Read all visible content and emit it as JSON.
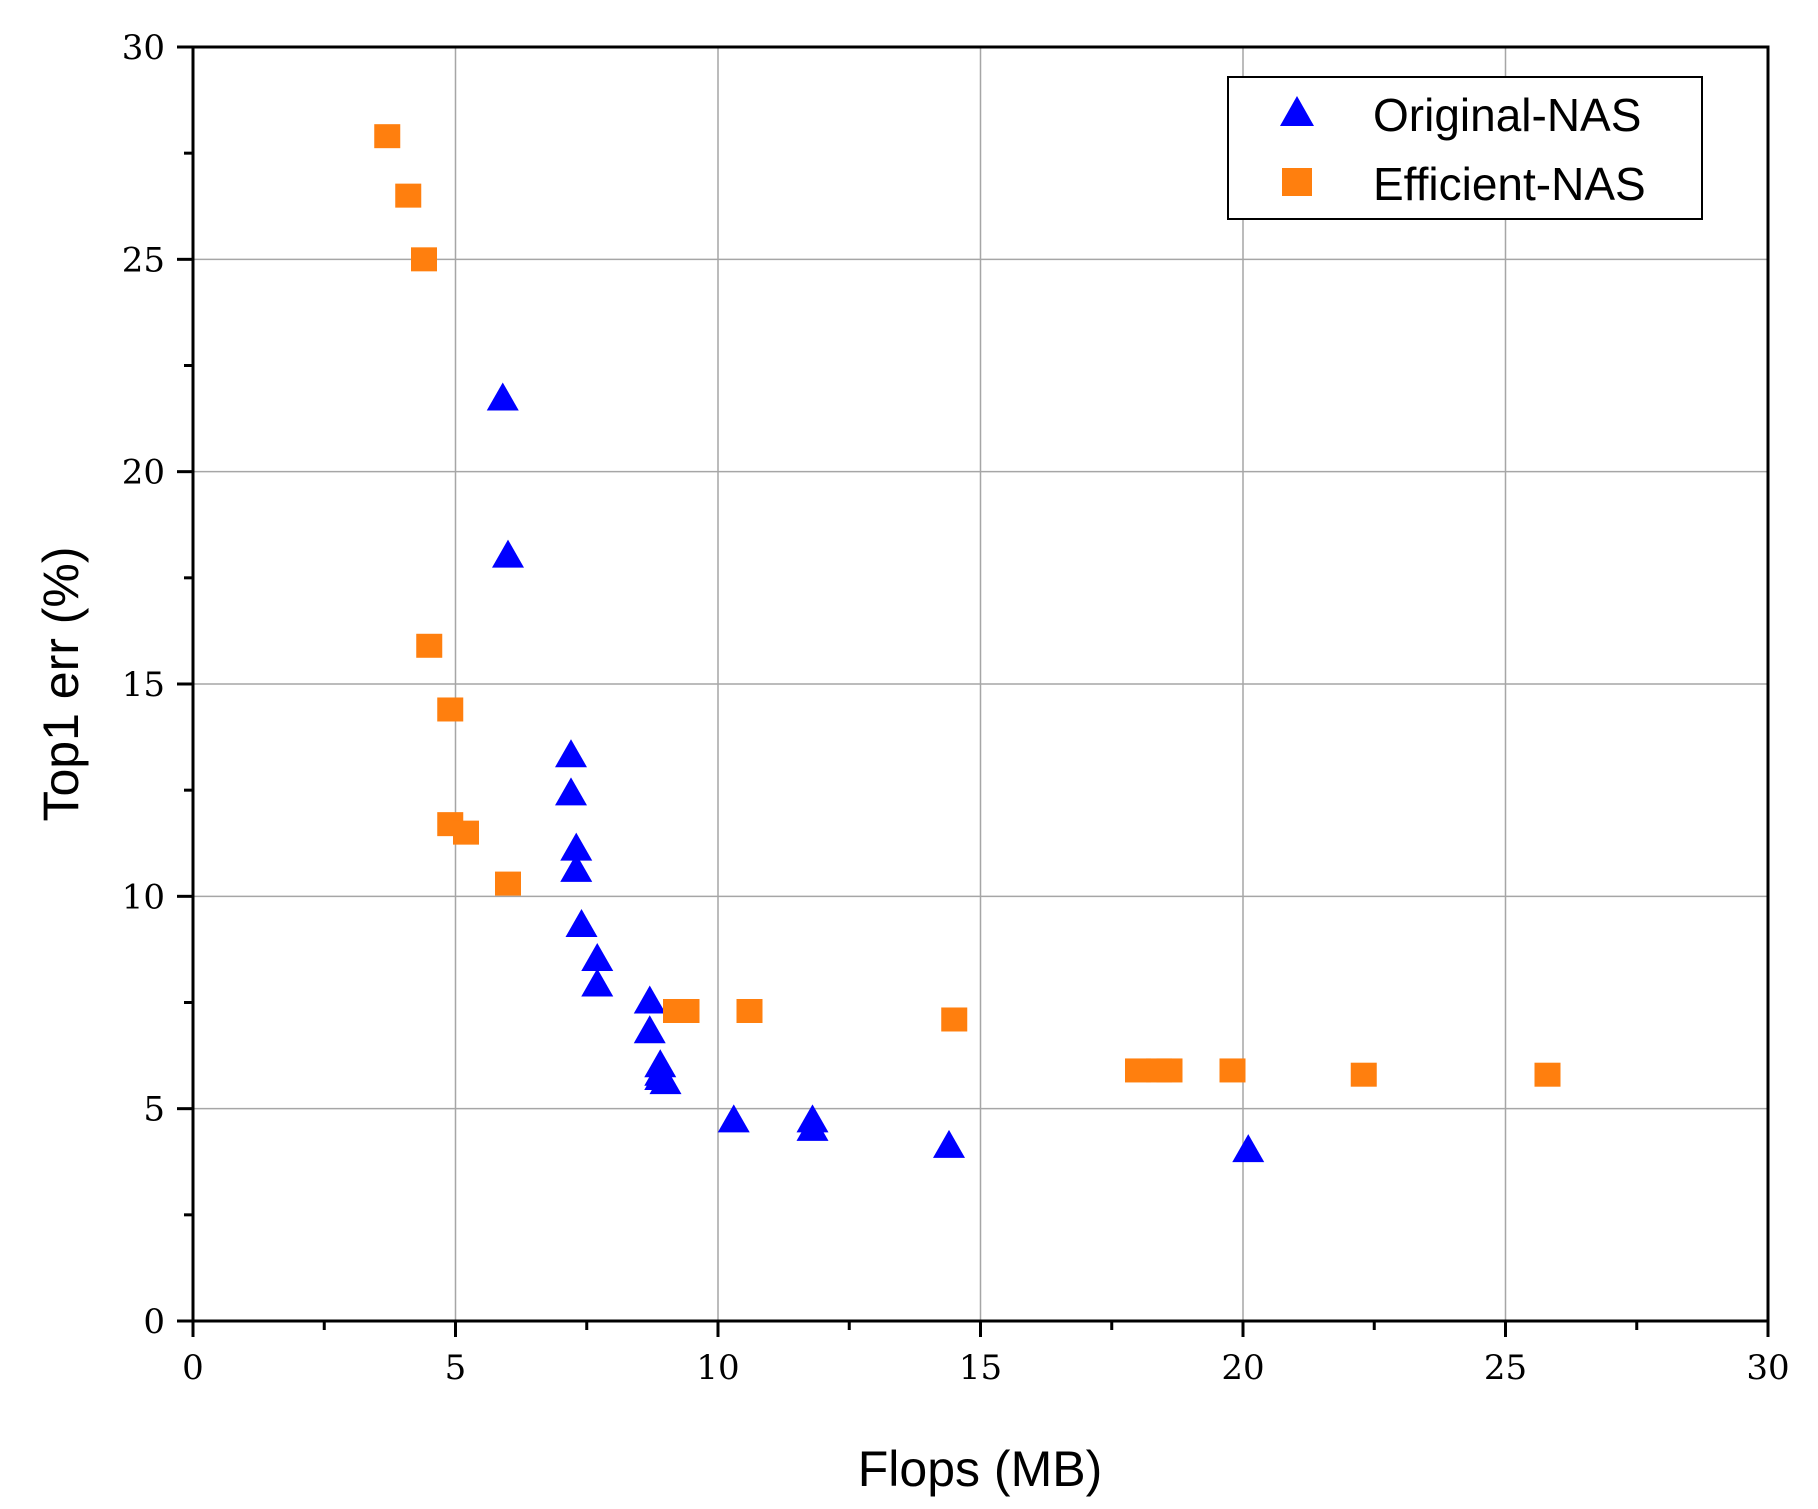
{
  "chart_data": {
    "type": "scatter",
    "xlabel": "Flops (MB)",
    "ylabel": "Top1 err (%)",
    "xlim": [
      0,
      30
    ],
    "ylim": [
      0,
      30
    ],
    "x_ticks": [
      0,
      5,
      10,
      15,
      20,
      25,
      30
    ],
    "y_ticks": [
      0,
      5,
      10,
      15,
      20,
      25,
      30
    ],
    "grid": true,
    "legend_position": "top-right",
    "series": [
      {
        "name": "Original-NAS",
        "marker": "triangle",
        "color": "#0000FF",
        "points": [
          [
            5.9,
            21.7
          ],
          [
            6.0,
            18.0
          ],
          [
            7.2,
            13.3
          ],
          [
            7.2,
            12.4
          ],
          [
            7.3,
            11.1
          ],
          [
            7.3,
            10.6
          ],
          [
            7.4,
            9.3
          ],
          [
            7.7,
            8.5
          ],
          [
            7.7,
            7.9
          ],
          [
            8.7,
            7.5
          ],
          [
            8.7,
            6.8
          ],
          [
            8.9,
            6.0
          ],
          [
            8.9,
            5.8
          ],
          [
            8.9,
            5.7
          ],
          [
            9.0,
            5.6
          ],
          [
            10.3,
            4.7
          ],
          [
            11.8,
            4.7
          ],
          [
            11.8,
            4.5
          ],
          [
            14.4,
            4.1
          ],
          [
            20.1,
            4.0
          ]
        ]
      },
      {
        "name": "Efficient-NAS",
        "marker": "square",
        "color": "#FF7F0E",
        "points": [
          [
            3.7,
            27.9
          ],
          [
            4.1,
            26.5
          ],
          [
            4.4,
            25.0
          ],
          [
            4.5,
            15.9
          ],
          [
            4.9,
            14.4
          ],
          [
            4.9,
            11.7
          ],
          [
            5.2,
            11.5
          ],
          [
            6.0,
            10.3
          ],
          [
            9.2,
            7.3
          ],
          [
            9.4,
            7.3
          ],
          [
            10.6,
            7.3
          ],
          [
            14.5,
            7.1
          ],
          [
            18.0,
            5.9
          ],
          [
            18.4,
            5.9
          ],
          [
            18.6,
            5.9
          ],
          [
            19.8,
            5.9
          ],
          [
            22.3,
            5.8
          ],
          [
            25.8,
            5.8
          ]
        ]
      }
    ]
  }
}
